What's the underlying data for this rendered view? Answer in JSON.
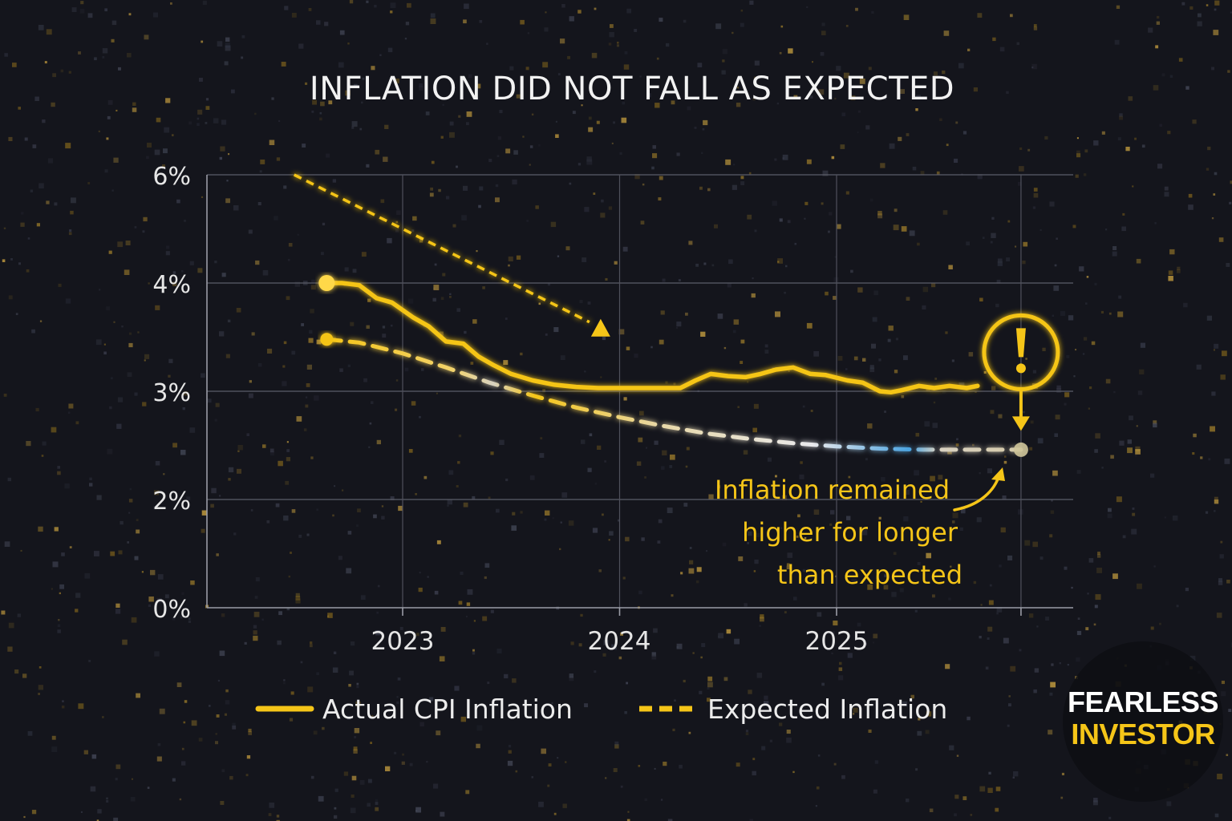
{
  "colors": {
    "background": "#14151c",
    "actual": "#f5c518",
    "expected": "#f5c518",
    "grid": "#6b6d78",
    "accent": "#f5c518",
    "text": "#eeeeee"
  },
  "brand": {
    "line1": "FEARLESS",
    "line2": "INVESTOR",
    "icon": "brand-logo"
  },
  "chart_data": {
    "type": "line",
    "title": "INFLATION DID NOT FALL AS EXPECTED",
    "xlabel": "",
    "ylabel": "",
    "y_ticks": [
      "6%",
      "4%",
      "3%",
      "2%",
      "0%"
    ],
    "y_tick_values": [
      6,
      4,
      3,
      2,
      0
    ],
    "x_ticks": [
      "2023",
      "2024",
      "2025"
    ],
    "x_tick_values": [
      2023.0,
      2024.0,
      2025.0
    ],
    "x_end": 2025.85,
    "grid": true,
    "series": [
      {
        "name": "Actual CPI Inflation",
        "style": "solid",
        "x": [
          2022.65,
          2022.72,
          2022.8,
          2022.88,
          2022.95,
          2023.05,
          2023.12,
          2023.2,
          2023.28,
          2023.35,
          2023.42,
          2023.5,
          2023.6,
          2023.7,
          2023.8,
          2023.9,
          2024.0,
          2024.1,
          2024.2,
          2024.28,
          2024.35,
          2024.42,
          2024.5,
          2024.58,
          2024.65,
          2024.72,
          2024.8,
          2024.88,
          2024.95,
          2025.05,
          2025.12,
          2025.2,
          2025.25,
          2025.3,
          2025.38,
          2025.45,
          2025.52,
          2025.6,
          2025.65
        ],
        "values": [
          4.0,
          4.0,
          3.98,
          3.86,
          3.82,
          3.68,
          3.6,
          3.46,
          3.44,
          3.32,
          3.24,
          3.16,
          3.1,
          3.06,
          3.04,
          3.03,
          3.03,
          3.03,
          3.03,
          3.03,
          3.1,
          3.16,
          3.14,
          3.13,
          3.16,
          3.2,
          3.22,
          3.16,
          3.15,
          3.1,
          3.08,
          3.0,
          2.99,
          3.01,
          3.05,
          3.03,
          3.05,
          3.03,
          3.05
        ]
      },
      {
        "name": "Expected Inflation",
        "style": "dashed",
        "x": [
          2022.65,
          2022.8,
          2023.0,
          2023.2,
          2023.4,
          2023.6,
          2023.8,
          2024.0,
          2024.2,
          2024.4,
          2024.6,
          2024.8,
          2025.0,
          2025.2,
          2025.4,
          2025.6,
          2025.85
        ],
        "values": [
          3.48,
          3.45,
          3.35,
          3.22,
          3.08,
          2.96,
          2.85,
          2.76,
          2.68,
          2.61,
          2.56,
          2.52,
          2.49,
          2.47,
          2.46,
          2.46,
          2.46
        ]
      }
    ],
    "trend_arrow": {
      "from": [
        2022.5,
        6.0
      ],
      "to": [
        2023.92,
        3.58
      ]
    },
    "warning_marker": {
      "x": 2025.85,
      "y": 3.36,
      "icon": "warning-icon"
    },
    "annotations": [
      "Inflation remained",
      "higher for longer",
      "than expected"
    ],
    "legend": [
      "Actual CPI Inflation",
      "Expected Inflation"
    ],
    "legend_position": "bottom-center"
  }
}
